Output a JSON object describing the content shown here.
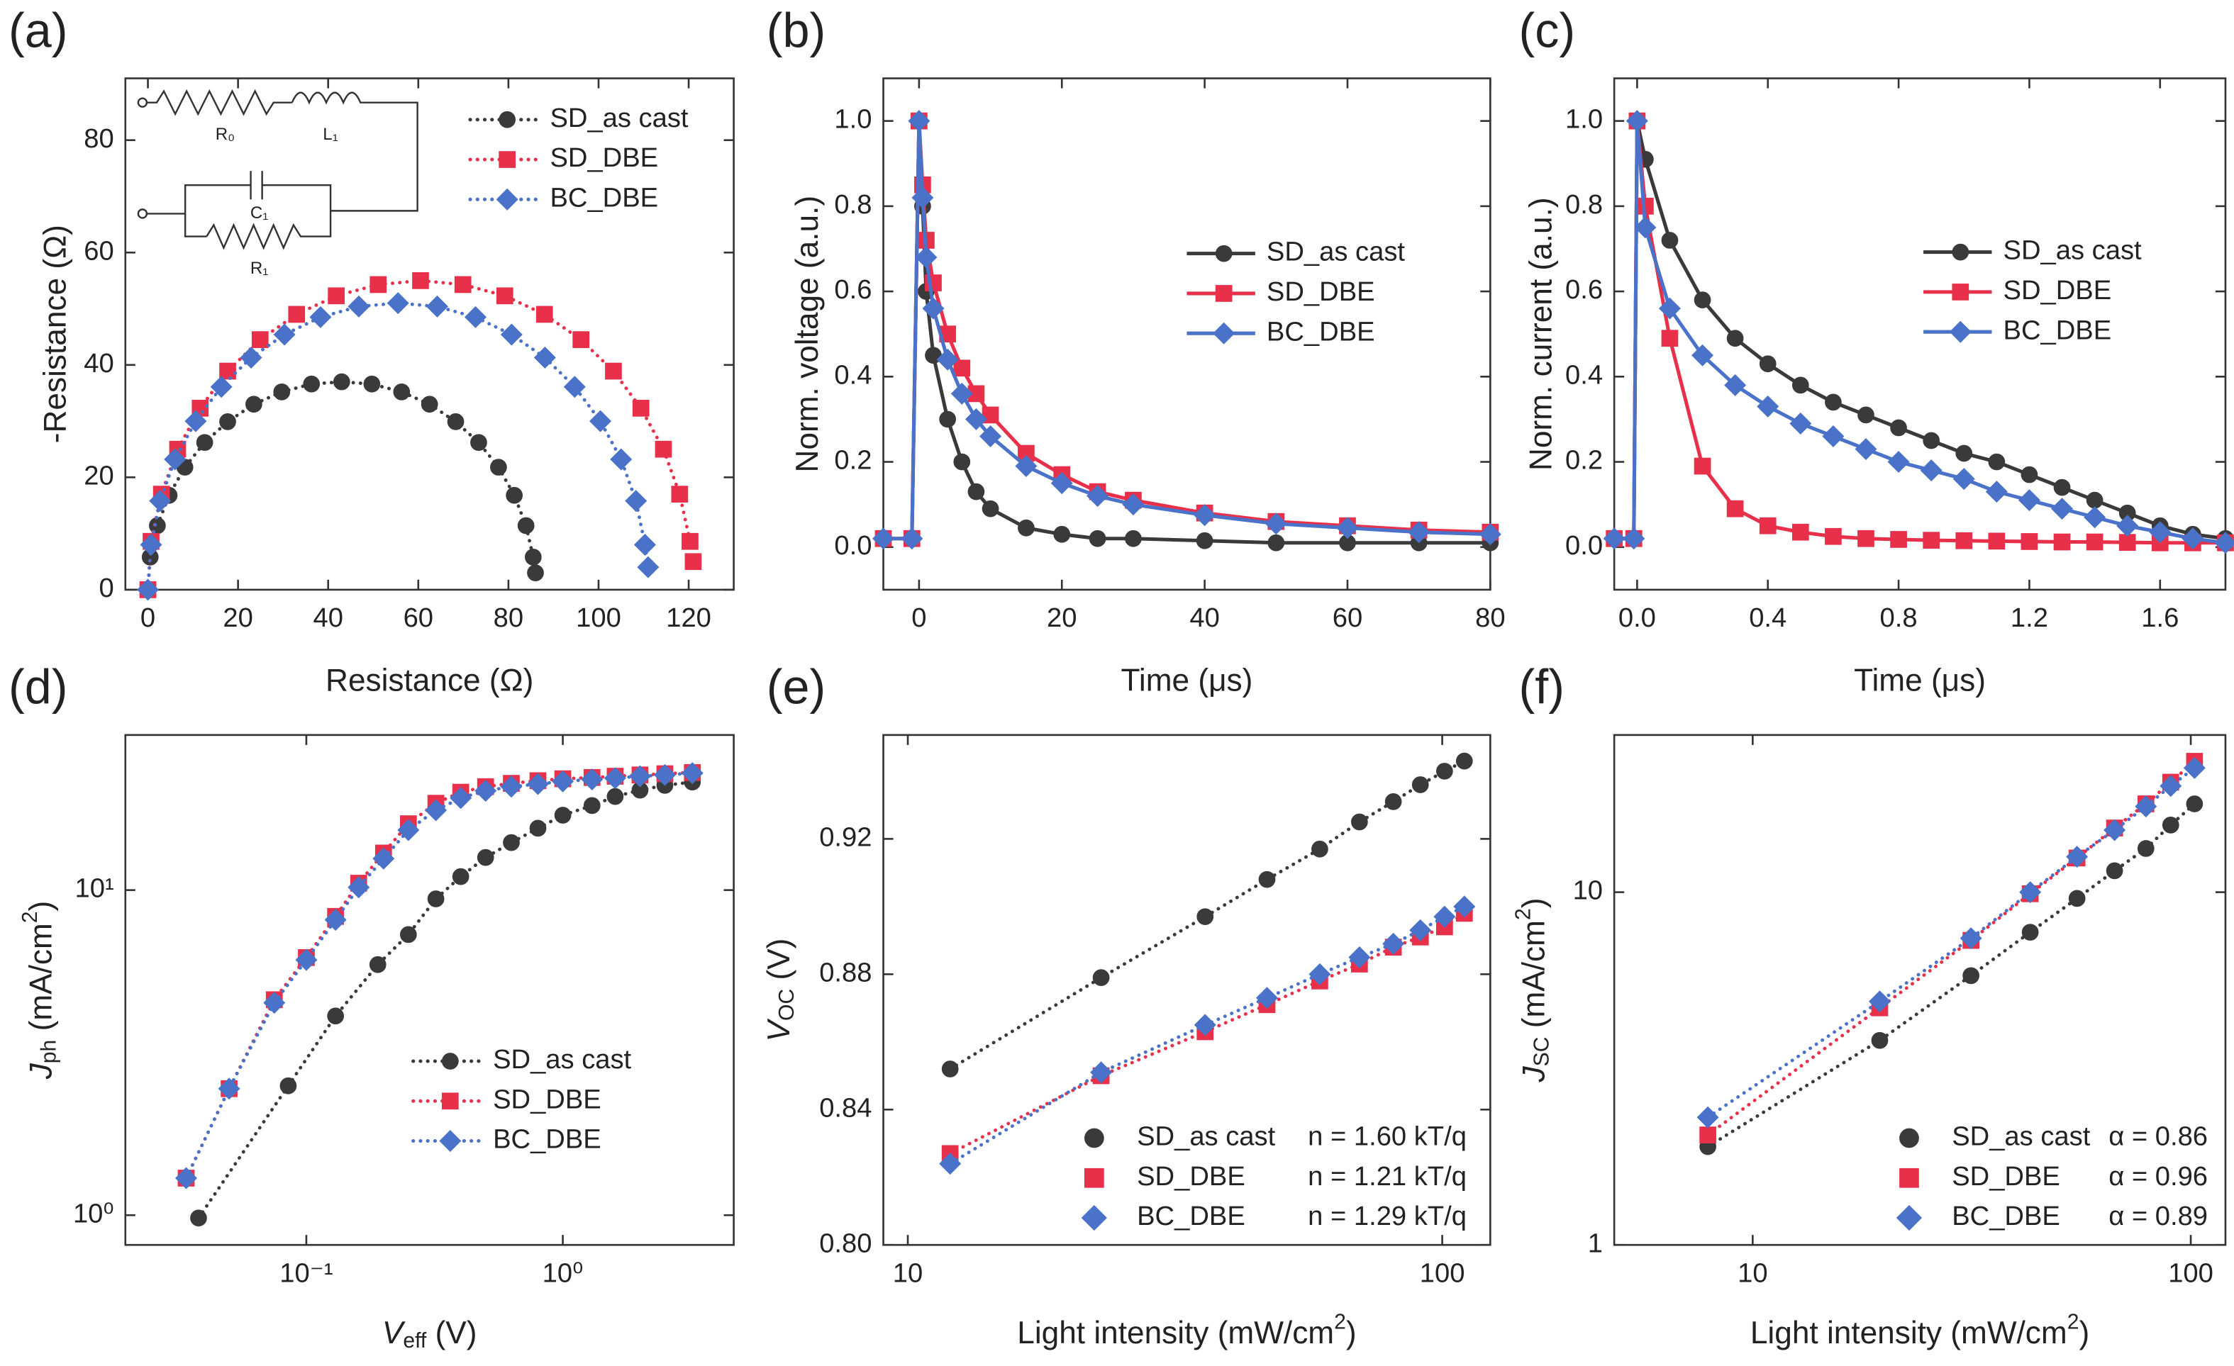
{
  "chart_data": [
    {
      "type": "line",
      "panel": "(a)",
      "xlabel": [
        {
          "text": "Resistance (Ω)"
        }
      ],
      "ylabel": [
        {
          "text": "-Resistance (Ω)"
        }
      ],
      "xlim": [
        -5,
        130
      ],
      "ylim": [
        0,
        91
      ],
      "xticks": [
        0,
        20,
        40,
        60,
        80,
        100,
        120
      ],
      "yticks": [
        0,
        20,
        40,
        60,
        80
      ],
      "legend": "upper right",
      "inset_labels": [
        "R₀",
        "L₁",
        "C₁",
        "R₁"
      ],
      "series": [
        {
          "name": "SD_as cast",
          "color": "#3a3a3a",
          "marker": "circle",
          "linestyle": "dotted",
          "x": [
            0,
            0.5,
            2.1,
            4.7,
            8.2,
            12.6,
            17.7,
            23.5,
            29.7,
            36.3,
            43,
            49.7,
            56.3,
            62.5,
            68.3,
            73.4,
            77.8,
            81.3,
            83.9,
            85.5,
            86
          ],
          "values": [
            0,
            5.8,
            11.4,
            16.8,
            21.8,
            26.2,
            29.9,
            33.0,
            35.2,
            36.6,
            37,
            36.6,
            35.2,
            33.0,
            29.9,
            26.2,
            21.8,
            16.8,
            11.4,
            5.8,
            3
          ]
        },
        {
          "name": "SD_DBE",
          "color": "#e8304a",
          "marker": "square",
          "linestyle": "dotted",
          "x": [
            0,
            0.7,
            3.0,
            6.6,
            11.6,
            17.7,
            24.9,
            33.0,
            41.8,
            51.1,
            60.5,
            69.9,
            79.2,
            88.0,
            96.1,
            103.3,
            109.4,
            114.4,
            118.0,
            120.3,
            121
          ],
          "values": [
            0,
            8.6,
            17.0,
            25.0,
            32.3,
            38.9,
            44.5,
            49.0,
            52.3,
            54.3,
            55,
            54.3,
            52.3,
            49.0,
            44.5,
            38.9,
            32.3,
            25.0,
            17.0,
            8.6,
            5
          ]
        },
        {
          "name": "BC_DBE",
          "color": "#4a72c8",
          "marker": "diamond",
          "linestyle": "dotted",
          "x": [
            0,
            0.7,
            2.7,
            6.0,
            10.6,
            16.3,
            22.9,
            30.3,
            38.3,
            46.8,
            55.5,
            64.2,
            72.7,
            80.7,
            88.1,
            94.7,
            100.4,
            105.0,
            108.3,
            110.3,
            111
          ],
          "values": [
            0,
            8.0,
            15.8,
            23.2,
            30.0,
            36.1,
            41.3,
            45.4,
            48.5,
            50.4,
            51,
            50.4,
            48.5,
            45.4,
            41.3,
            36.1,
            30.0,
            23.2,
            15.8,
            8.0,
            4
          ]
        }
      ]
    },
    {
      "type": "line",
      "panel": "(b)",
      "xlabel": [
        {
          "text": "Time (μs)"
        }
      ],
      "ylabel": [
        {
          "text": "Norm. voltage (a.u.)"
        }
      ],
      "xlim": [
        -5,
        80
      ],
      "ylim": [
        -0.1,
        1.1
      ],
      "xticks": [
        0,
        20,
        40,
        60,
        80
      ],
      "yticks": [
        {
          "value": 0,
          "label": "0.0"
        },
        0.2,
        0.4,
        0.6,
        0.8,
        {
          "value": 1,
          "label": "1.0"
        }
      ],
      "legend": "center right",
      "series": [
        {
          "name": "SD_as cast",
          "color": "#3a3a3a",
          "marker": "circle",
          "linestyle": "solid",
          "x": [
            -5,
            -1,
            0,
            0.5,
            1,
            2,
            4,
            6,
            8,
            10,
            15,
            20,
            25,
            30,
            40,
            50,
            60,
            70,
            80
          ],
          "values": [
            0.02,
            0.02,
            1.0,
            0.8,
            0.6,
            0.45,
            0.3,
            0.2,
            0.13,
            0.09,
            0.045,
            0.03,
            0.02,
            0.02,
            0.015,
            0.01,
            0.01,
            0.01,
            0.01
          ]
        },
        {
          "name": "SD_DBE",
          "color": "#e8304a",
          "marker": "square",
          "linestyle": "solid",
          "x": [
            -5,
            -1,
            0,
            0.5,
            1,
            2,
            4,
            6,
            8,
            10,
            15,
            20,
            25,
            30,
            40,
            50,
            60,
            70,
            80
          ],
          "values": [
            0.02,
            0.02,
            1.0,
            0.85,
            0.72,
            0.62,
            0.5,
            0.42,
            0.36,
            0.31,
            0.22,
            0.17,
            0.13,
            0.11,
            0.08,
            0.06,
            0.05,
            0.04,
            0.035
          ]
        },
        {
          "name": "BC_DBE",
          "color": "#4a72c8",
          "marker": "diamond",
          "linestyle": "solid",
          "x": [
            -5,
            -1,
            0,
            0.5,
            1,
            2,
            4,
            6,
            8,
            10,
            15,
            20,
            25,
            30,
            40,
            50,
            60,
            70,
            80
          ],
          "values": [
            0.02,
            0.02,
            1.0,
            0.82,
            0.68,
            0.56,
            0.44,
            0.36,
            0.3,
            0.26,
            0.19,
            0.15,
            0.12,
            0.1,
            0.075,
            0.055,
            0.045,
            0.035,
            0.03
          ]
        }
      ]
    },
    {
      "type": "line",
      "panel": "(c)",
      "xlabel": [
        {
          "text": "Time (μs)"
        }
      ],
      "ylabel": [
        {
          "text": "Norm. current (a.u.)"
        }
      ],
      "xlim": [
        -0.07,
        1.8
      ],
      "ylim": [
        -0.1,
        1.1
      ],
      "xticks": [
        {
          "value": 0,
          "label": "0.0"
        },
        0.4,
        0.8,
        1.2,
        1.6
      ],
      "yticks": [
        {
          "value": 0,
          "label": "0.0"
        },
        0.2,
        0.4,
        0.6,
        0.8,
        {
          "value": 1,
          "label": "1.0"
        }
      ],
      "legend": "center right",
      "series": [
        {
          "name": "SD_as cast",
          "color": "#3a3a3a",
          "marker": "circle",
          "linestyle": "solid",
          "x": [
            -0.07,
            -0.01,
            0,
            0.025,
            0.1,
            0.2,
            0.3,
            0.4,
            0.5,
            0.6,
            0.7,
            0.8,
            0.9,
            1.0,
            1.1,
            1.2,
            1.3,
            1.4,
            1.5,
            1.6,
            1.7,
            1.8
          ],
          "values": [
            0.02,
            0.02,
            1.0,
            0.91,
            0.72,
            0.58,
            0.49,
            0.43,
            0.38,
            0.34,
            0.31,
            0.28,
            0.25,
            0.22,
            0.2,
            0.17,
            0.14,
            0.11,
            0.08,
            0.05,
            0.03,
            0.02
          ]
        },
        {
          "name": "SD_DBE",
          "color": "#e8304a",
          "marker": "square",
          "linestyle": "solid",
          "x": [
            -0.07,
            -0.01,
            0,
            0.025,
            0.1,
            0.2,
            0.3,
            0.4,
            0.5,
            0.6,
            0.7,
            0.8,
            0.9,
            1.0,
            1.1,
            1.2,
            1.3,
            1.4,
            1.5,
            1.6,
            1.7,
            1.8
          ],
          "values": [
            0.02,
            0.02,
            1.0,
            0.8,
            0.49,
            0.19,
            0.09,
            0.05,
            0.035,
            0.025,
            0.02,
            0.018,
            0.016,
            0.015,
            0.014,
            0.013,
            0.012,
            0.012,
            0.011,
            0.01,
            0.01,
            0.01
          ]
        },
        {
          "name": "BC_DBE",
          "color": "#4a72c8",
          "marker": "diamond",
          "linestyle": "solid",
          "x": [
            -0.07,
            -0.01,
            0,
            0.025,
            0.1,
            0.2,
            0.3,
            0.4,
            0.5,
            0.6,
            0.7,
            0.8,
            0.9,
            1.0,
            1.1,
            1.2,
            1.3,
            1.4,
            1.5,
            1.6,
            1.7,
            1.8
          ],
          "values": [
            0.02,
            0.02,
            1.0,
            0.75,
            0.56,
            0.45,
            0.38,
            0.33,
            0.29,
            0.26,
            0.23,
            0.2,
            0.18,
            0.16,
            0.13,
            0.11,
            0.09,
            0.07,
            0.05,
            0.035,
            0.02,
            0.01
          ]
        }
      ]
    },
    {
      "type": "line",
      "panel": "(d)",
      "xlabel": [
        {
          "text": "V",
          "style": "italic"
        },
        {
          "text": "eff",
          "style": "sub"
        },
        {
          "text": " (V)"
        }
      ],
      "ylabel": [
        {
          "text": "J",
          "style": "italic"
        },
        {
          "text": "ph",
          "style": "sub"
        },
        {
          "text": " (mA/cm"
        },
        {
          "text": "2",
          "style": "sup"
        },
        {
          "text": ")"
        }
      ],
      "xscale": "log",
      "yscale": "log",
      "xlim": [
        0.0197,
        4.64
      ],
      "ylim": [
        0.81,
        30
      ],
      "xticks": [
        {
          "value": 0.1,
          "label": "10⁻¹"
        },
        {
          "value": 1,
          "label": "10⁰"
        }
      ],
      "yticks": [
        {
          "value": 1,
          "label": "10⁰"
        },
        {
          "value": 10,
          "label": "10¹"
        }
      ],
      "legend": "lower right",
      "series": [
        {
          "name": "SD_as cast",
          "color": "#3a3a3a",
          "marker": "circle",
          "linestyle": "dotted",
          "x": [
            0.038,
            0.085,
            0.13,
            0.19,
            0.25,
            0.32,
            0.4,
            0.5,
            0.63,
            0.8,
            1.0,
            1.3,
            1.6,
            2,
            2.5,
            3.2
          ],
          "values": [
            0.98,
            2.5,
            4.1,
            5.9,
            7.3,
            9.4,
            11,
            12.6,
            14,
            15.5,
            17,
            18.2,
            19.4,
            20.3,
            21,
            21.5
          ]
        },
        {
          "name": "SD_DBE",
          "color": "#e8304a",
          "marker": "square",
          "linestyle": "dotted",
          "x": [
            0.034,
            0.05,
            0.075,
            0.1,
            0.13,
            0.16,
            0.2,
            0.25,
            0.32,
            0.4,
            0.5,
            0.63,
            0.8,
            1,
            1.3,
            1.6,
            2,
            2.5,
            3.2
          ],
          "values": [
            1.3,
            2.45,
            4.6,
            6.2,
            8.3,
            10.5,
            13,
            16,
            18.5,
            20,
            20.8,
            21.3,
            21.7,
            22,
            22.2,
            22.4,
            22.6,
            22.8,
            23
          ]
        },
        {
          "name": "BC_DBE",
          "color": "#4a72c8",
          "marker": "diamond",
          "linestyle": "dotted",
          "x": [
            0.034,
            0.05,
            0.075,
            0.1,
            0.13,
            0.16,
            0.2,
            0.25,
            0.32,
            0.4,
            0.5,
            0.63,
            0.8,
            1,
            1.3,
            1.6,
            2,
            2.5,
            3.2
          ],
          "values": [
            1.3,
            2.45,
            4.5,
            6.1,
            8.1,
            10.2,
            12.5,
            15.3,
            17.6,
            19.2,
            20.2,
            20.8,
            21.2,
            21.6,
            21.9,
            22.1,
            22.4,
            22.6,
            22.9
          ]
        }
      ]
    },
    {
      "type": "line",
      "panel": "(e)",
      "xlabel": [
        {
          "text": "Light intensity (mW/cm"
        },
        {
          "text": "2",
          "style": "sup"
        },
        {
          "text": ")"
        }
      ],
      "ylabel": [
        {
          "text": "V",
          "style": "italic"
        },
        {
          "text": "OC",
          "style": "sub"
        },
        {
          "text": " (V)"
        }
      ],
      "xscale": "log",
      "xlim": [
        9.0,
        123
      ],
      "ylim": [
        0.8,
        0.9507
      ],
      "xticks": [
        10,
        100
      ],
      "yticks": [
        {
          "value": 0.8,
          "label": "0.80"
        },
        0.84,
        0.88,
        0.92
      ],
      "legend": "lower right",
      "legend_marker_only": true,
      "series": [
        {
          "name": "SD_as cast",
          "fit": "n = 1.60 kT/q",
          "color": "#3a3a3a",
          "marker": "circle",
          "linestyle": "dotted",
          "x": [
            12,
            23,
            36,
            47,
            59,
            70,
            81,
            91,
            101,
            110
          ],
          "values": [
            0.852,
            0.879,
            0.897,
            0.908,
            0.917,
            0.925,
            0.931,
            0.936,
            0.94,
            0.943
          ]
        },
        {
          "name": "SD_DBE",
          "fit": "n = 1.21 kT/q",
          "color": "#e8304a",
          "marker": "square",
          "linestyle": "dotted",
          "x": [
            12,
            23,
            36,
            47,
            59,
            70,
            81,
            91,
            101,
            110
          ],
          "values": [
            0.827,
            0.85,
            0.863,
            0.871,
            0.878,
            0.883,
            0.888,
            0.891,
            0.894,
            0.898
          ]
        },
        {
          "name": "BC_DBE",
          "fit": "n = 1.29 kT/q",
          "color": "#4a72c8",
          "marker": "diamond",
          "linestyle": "dotted",
          "x": [
            12,
            23,
            36,
            47,
            59,
            70,
            81,
            91,
            101,
            110
          ],
          "values": [
            0.824,
            0.851,
            0.865,
            0.873,
            0.88,
            0.885,
            0.889,
            0.893,
            0.897,
            0.9
          ]
        }
      ]
    },
    {
      "type": "line",
      "panel": "(f)",
      "xlabel": [
        {
          "text": "Light intensity (mW/cm"
        },
        {
          "text": "2",
          "style": "sup"
        },
        {
          "text": ")"
        }
      ],
      "ylabel": [
        {
          "text": "J",
          "style": "italic"
        },
        {
          "text": "SC",
          "style": "sub"
        },
        {
          "text": " (mA/cm"
        },
        {
          "text": "2",
          "style": "sup"
        },
        {
          "text": ")"
        }
      ],
      "xscale": "log",
      "yscale": "log",
      "xlim": [
        4.83,
        120
      ],
      "ylim": [
        1,
        27.9
      ],
      "xticks": [
        10,
        100
      ],
      "yticks": [
        1,
        10
      ],
      "legend": "lower right",
      "legend_marker_only": true,
      "series": [
        {
          "name": "SD_as cast",
          "fit": "α = 0.86",
          "color": "#3a3a3a",
          "marker": "circle",
          "linestyle": "dotted",
          "x": [
            7.9,
            19.5,
            31.5,
            43,
            55,
            67,
            79,
            90,
            102
          ],
          "values": [
            1.9,
            3.8,
            5.8,
            7.7,
            9.6,
            11.5,
            13.3,
            15.5,
            17.8
          ]
        },
        {
          "name": "SD_DBE",
          "fit": "α = 0.96",
          "color": "#e8304a",
          "marker": "square",
          "linestyle": "dotted",
          "x": [
            7.9,
            19.5,
            31.5,
            43,
            55,
            67,
            79,
            90,
            102
          ],
          "values": [
            2.05,
            4.7,
            7.3,
            9.9,
            12.5,
            15.2,
            17.8,
            20.5,
            23.5
          ]
        },
        {
          "name": "BC_DBE",
          "fit": "α = 0.89",
          "color": "#4a72c8",
          "marker": "diamond",
          "linestyle": "dotted",
          "x": [
            7.9,
            19.5,
            31.5,
            43,
            55,
            67,
            79,
            90,
            102
          ],
          "values": [
            2.3,
            4.9,
            7.4,
            10,
            12.6,
            15,
            17.5,
            20,
            22.5
          ]
        }
      ]
    }
  ]
}
